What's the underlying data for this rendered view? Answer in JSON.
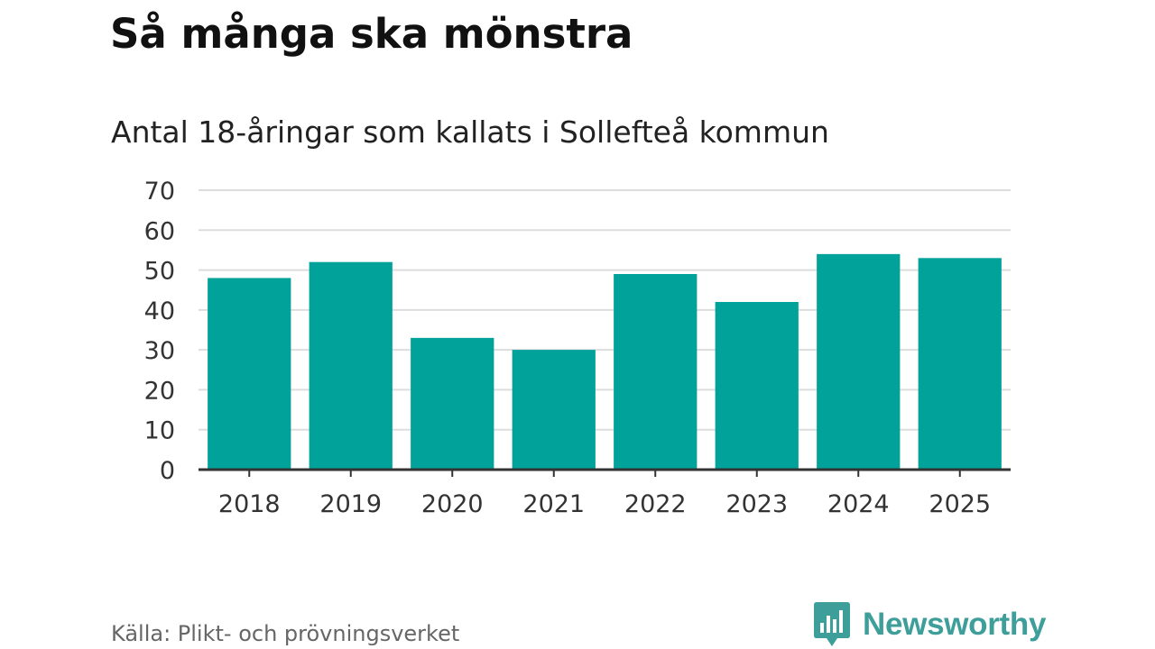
{
  "header": {
    "title": "Så många ska mönstra",
    "subtitle": "Antal 18-åringar som kallats i Sollefteå kommun"
  },
  "chart_data": {
    "type": "bar",
    "title": "Så många ska mönstra",
    "subtitle": "Antal 18-åringar som kallats i Sollefteå kommun",
    "xlabel": "",
    "ylabel": "",
    "categories": [
      "2018",
      "2019",
      "2020",
      "2021",
      "2022",
      "2023",
      "2024",
      "2025"
    ],
    "values": [
      48,
      52,
      33,
      30,
      49,
      42,
      54,
      53
    ],
    "ylim": [
      0,
      70
    ],
    "yticks": [
      0,
      10,
      20,
      30,
      40,
      50,
      60,
      70
    ],
    "grid": true,
    "legend": "none",
    "bar_color": "#00a29a",
    "grid_color": "#dddddd",
    "axis_color": "#333333"
  },
  "footer": {
    "source": "Källa: Plikt- och prövningsverket",
    "brand": "Newsworthy",
    "brand_color": "#3e9e9a",
    "brand_icon": "bar-chart-speech-bubble-icon"
  }
}
